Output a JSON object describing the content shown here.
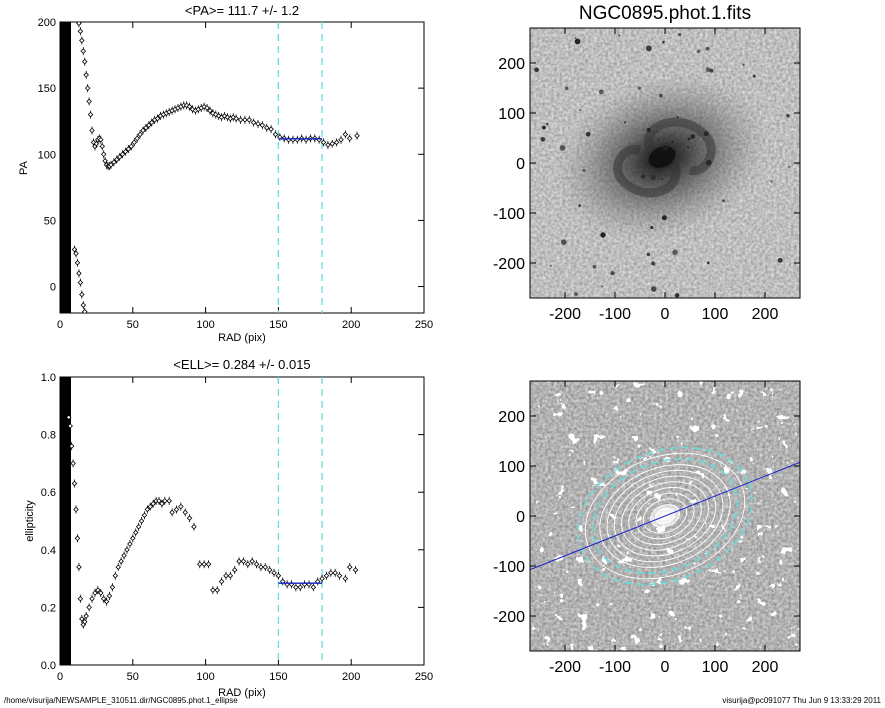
{
  "footer": {
    "left": "/home/visurija/NEWSAMPLE_310511.dir/NGC0895.phot.1_ellipse",
    "right": "visurija@pc091077  Thu Jun  9 13:33:29 2011"
  },
  "colors": {
    "marker": "#000000",
    "fit": "#1a22cc",
    "bounds": "#66dddd",
    "axis_line": "#1a22cc"
  },
  "chart_data": [
    {
      "id": "pa",
      "type": "scatter",
      "title": "<PA>= 111.7 +/-   1.2",
      "xlabel": "RAD (pix)",
      "ylabel": "PA",
      "xlim": [
        0,
        250
      ],
      "ylim": [
        -20,
        200
      ],
      "xticks": [
        0,
        50,
        100,
        150,
        200,
        250
      ],
      "yticks": [
        0,
        50,
        100,
        150,
        200
      ],
      "points": [
        [
          13,
          199
        ],
        [
          14,
          193
        ],
        [
          15,
          186
        ],
        [
          16,
          178
        ],
        [
          17,
          170
        ],
        [
          18,
          160
        ],
        [
          19,
          150
        ],
        [
          20,
          140
        ],
        [
          21,
          130
        ],
        [
          22,
          118
        ],
        [
          23,
          109
        ],
        [
          24,
          106
        ],
        [
          25,
          108
        ],
        [
          26,
          111
        ],
        [
          27,
          112
        ],
        [
          28,
          111
        ],
        [
          29,
          106
        ],
        [
          30,
          100
        ],
        [
          31,
          95
        ],
        [
          32,
          92
        ],
        [
          33,
          91
        ],
        [
          34,
          91
        ],
        [
          35,
          92
        ],
        [
          37,
          94
        ],
        [
          39,
          96
        ],
        [
          41,
          98
        ],
        [
          43,
          100
        ],
        [
          45,
          102
        ],
        [
          47,
          104
        ],
        [
          49,
          106
        ],
        [
          51,
          109
        ],
        [
          53,
          112
        ],
        [
          55,
          115
        ],
        [
          57,
          118
        ],
        [
          59,
          120
        ],
        [
          61,
          122
        ],
        [
          63,
          124
        ],
        [
          65,
          126
        ],
        [
          67,
          127
        ],
        [
          69,
          129
        ],
        [
          71,
          130
        ],
        [
          73,
          131
        ],
        [
          75,
          132
        ],
        [
          77,
          133
        ],
        [
          79,
          134
        ],
        [
          81,
          135
        ],
        [
          83,
          136
        ],
        [
          85,
          137
        ],
        [
          87,
          137
        ],
        [
          89,
          136
        ],
        [
          91,
          134
        ],
        [
          93,
          133
        ],
        [
          95,
          134
        ],
        [
          97,
          135
        ],
        [
          99,
          136
        ],
        [
          101,
          135
        ],
        [
          103,
          133
        ],
        [
          105,
          131
        ],
        [
          107,
          130
        ],
        [
          109,
          129
        ],
        [
          111,
          128
        ],
        [
          113,
          129
        ],
        [
          115,
          128
        ],
        [
          117,
          127
        ],
        [
          119,
          128
        ],
        [
          121,
          127
        ],
        [
          124,
          126
        ],
        [
          127,
          126
        ],
        [
          130,
          126
        ],
        [
          133,
          124
        ],
        [
          136,
          123
        ],
        [
          139,
          122
        ],
        [
          142,
          120
        ],
        [
          145,
          119
        ],
        [
          148,
          115
        ],
        [
          151,
          113
        ],
        [
          154,
          112
        ],
        [
          157,
          111
        ],
        [
          160,
          111
        ],
        [
          163,
          111
        ],
        [
          166,
          112
        ],
        [
          169,
          111
        ],
        [
          172,
          112
        ],
        [
          175,
          112
        ],
        [
          178,
          111
        ],
        [
          181,
          109
        ],
        [
          184,
          107
        ],
        [
          187,
          108
        ],
        [
          190,
          109
        ],
        [
          193,
          111
        ],
        [
          196,
          115
        ],
        [
          199,
          112
        ],
        [
          204,
          114
        ]
      ],
      "inner_points": [
        [
          10,
          28
        ],
        [
          11,
          25
        ],
        [
          12,
          18
        ],
        [
          13,
          10
        ],
        [
          14,
          3
        ],
        [
          15,
          -6
        ],
        [
          16,
          -14
        ],
        [
          17,
          -19
        ]
      ],
      "fit": {
        "y": 111.7,
        "x_range": [
          150,
          180
        ]
      },
      "bounds": [
        150,
        180
      ]
    },
    {
      "id": "ell",
      "type": "scatter",
      "title": "<ELL>= 0.284 +/-  0.015",
      "xlabel": "RAD (pix)",
      "ylabel": "ellipticity",
      "xlim": [
        0,
        250
      ],
      "ylim": [
        0,
        1.0
      ],
      "xticks": [
        0,
        50,
        100,
        150,
        200,
        250
      ],
      "yticks": [
        0.0,
        0.2,
        0.4,
        0.6,
        0.8,
        1.0
      ],
      "points": [
        [
          6,
          0.86
        ],
        [
          7,
          0.83
        ],
        [
          8,
          0.76
        ],
        [
          9,
          0.7
        ],
        [
          10,
          0.63
        ],
        [
          11,
          0.54
        ],
        [
          12,
          0.44
        ],
        [
          13,
          0.34
        ],
        [
          14,
          0.23
        ],
        [
          15,
          0.16
        ],
        [
          16,
          0.14
        ],
        [
          17,
          0.15
        ],
        [
          18,
          0.17
        ],
        [
          20,
          0.2
        ],
        [
          22,
          0.23
        ],
        [
          24,
          0.25
        ],
        [
          26,
          0.26
        ],
        [
          28,
          0.25
        ],
        [
          30,
          0.23
        ],
        [
          32,
          0.22
        ],
        [
          34,
          0.24
        ],
        [
          36,
          0.27
        ],
        [
          38,
          0.31
        ],
        [
          40,
          0.34
        ],
        [
          42,
          0.36
        ],
        [
          44,
          0.38
        ],
        [
          46,
          0.4
        ],
        [
          48,
          0.42
        ],
        [
          50,
          0.44
        ],
        [
          52,
          0.46
        ],
        [
          54,
          0.48
        ],
        [
          56,
          0.5
        ],
        [
          58,
          0.52
        ],
        [
          60,
          0.54
        ],
        [
          62,
          0.55
        ],
        [
          64,
          0.56
        ],
        [
          66,
          0.57
        ],
        [
          68,
          0.57
        ],
        [
          70,
          0.56
        ],
        [
          72,
          0.57
        ],
        [
          75,
          0.57
        ],
        [
          77,
          0.53
        ],
        [
          80,
          0.54
        ],
        [
          83,
          0.55
        ],
        [
          86,
          0.53
        ],
        [
          89,
          0.51
        ],
        [
          92,
          0.48
        ],
        [
          96,
          0.35
        ],
        [
          99,
          0.35
        ],
        [
          102,
          0.35
        ],
        [
          105,
          0.26
        ],
        [
          108,
          0.26
        ],
        [
          111,
          0.29
        ],
        [
          114,
          0.31
        ],
        [
          117,
          0.31
        ],
        [
          120,
          0.33
        ],
        [
          123,
          0.36
        ],
        [
          126,
          0.36
        ],
        [
          129,
          0.35
        ],
        [
          132,
          0.36
        ],
        [
          135,
          0.35
        ],
        [
          138,
          0.34
        ],
        [
          141,
          0.34
        ],
        [
          144,
          0.33
        ],
        [
          147,
          0.32
        ],
        [
          150,
          0.31
        ],
        [
          153,
          0.29
        ],
        [
          156,
          0.28
        ],
        [
          159,
          0.28
        ],
        [
          162,
          0.27
        ],
        [
          165,
          0.27
        ],
        [
          168,
          0.28
        ],
        [
          171,
          0.28
        ],
        [
          174,
          0.27
        ],
        [
          177,
          0.29
        ],
        [
          180,
          0.3
        ],
        [
          183,
          0.31
        ],
        [
          186,
          0.32
        ],
        [
          189,
          0.32
        ],
        [
          192,
          0.31
        ],
        [
          196,
          0.3
        ],
        [
          199,
          0.34
        ],
        [
          203,
          0.33
        ]
      ],
      "fit": {
        "y": 0.284,
        "x_range": [
          150,
          180
        ]
      },
      "bounds": [
        150,
        180
      ]
    },
    {
      "id": "image",
      "type": "heatmap",
      "title": "NGC0895.phot.1.fits",
      "xlim": [
        -270,
        270
      ],
      "ylim": [
        -270,
        270
      ],
      "xticks": [
        -200,
        -100,
        0,
        100,
        200
      ],
      "yticks": [
        -200,
        -100,
        0,
        100,
        200
      ]
    },
    {
      "id": "contours",
      "type": "heatmap",
      "title": "",
      "xlim": [
        -270,
        270
      ],
      "ylim": [
        -270,
        270
      ],
      "xticks": [
        -200,
        -100,
        0,
        100,
        200
      ],
      "yticks": [
        -200,
        -100,
        0,
        100,
        200
      ],
      "pa_deg": 111.7,
      "ellipticity": 0.284,
      "contour_radii": [
        10,
        20,
        30,
        45,
        60,
        75,
        90,
        105,
        120,
        135,
        150,
        165,
        180
      ]
    }
  ]
}
